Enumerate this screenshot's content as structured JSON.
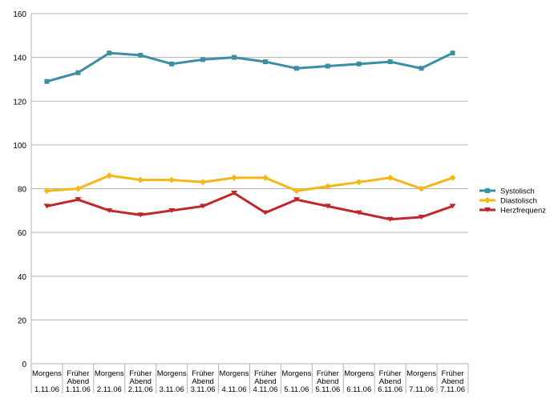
{
  "chart_data": {
    "type": "line",
    "title": "",
    "xlabel": "",
    "ylabel": "",
    "ylim": [
      0,
      160
    ],
    "yticks": [
      0,
      20,
      40,
      60,
      80,
      100,
      120,
      140,
      160
    ],
    "grid": true,
    "legend_position": "right",
    "categories": [
      {
        "label": "Morgens",
        "date": "1.11.06"
      },
      {
        "label": "Früher Abend",
        "date": "1.11.06"
      },
      {
        "label": "Morgens",
        "date": "2.11.06"
      },
      {
        "label": "Früher Abend",
        "date": "2.11.06"
      },
      {
        "label": "Morgens",
        "date": "3.11.06"
      },
      {
        "label": "Früher Abend",
        "date": "3.11.06"
      },
      {
        "label": "Morgens",
        "date": "4.11.06"
      },
      {
        "label": "Früher Abend",
        "date": "4.11.06"
      },
      {
        "label": "Morgens",
        "date": "5.11.06"
      },
      {
        "label": "Früher Abend",
        "date": "5.11.06"
      },
      {
        "label": "Morgens",
        "date": "6.11.06"
      },
      {
        "label": "Früher Abend",
        "date": "6.11.06"
      },
      {
        "label": "Morgens",
        "date": "7.11.06"
      },
      {
        "label": "Früher Abend",
        "date": "7.11.06"
      }
    ],
    "series": [
      {
        "name": "Systolisch",
        "color": "#3a8fa5",
        "marker": "square",
        "values": [
          129,
          133,
          142,
          141,
          137,
          139,
          140,
          138,
          135,
          136,
          137,
          138,
          135,
          142
        ]
      },
      {
        "name": "Diastolisch",
        "color": "#f5b617",
        "marker": "diamond",
        "values": [
          79,
          80,
          86,
          84,
          84,
          83,
          85,
          85,
          79,
          81,
          83,
          85,
          80,
          85
        ]
      },
      {
        "name": "Herzfrequenz",
        "color": "#c0272d",
        "marker": "triangle-down",
        "values": [
          72,
          75,
          70,
          68,
          70,
          72,
          78,
          69,
          75,
          72,
          69,
          66,
          67,
          72
        ]
      }
    ]
  }
}
